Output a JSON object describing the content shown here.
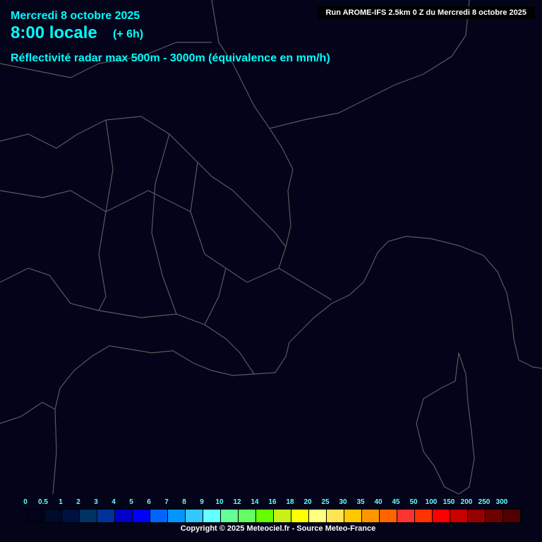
{
  "header": {
    "date": "Mercredi 8 octobre 2025",
    "time": "8:00 locale",
    "lead": "(+ 6h)",
    "parameter": "Réflectivité radar max 500m - 3000m (équivalence en mm/h)",
    "run": "Run AROME-IFS 2.5km 0 Z du Mercredi 8 octobre 2025"
  },
  "legend": {
    "labels": [
      "0",
      "0.5",
      "1",
      "2",
      "3",
      "4",
      "5",
      "6",
      "7",
      "8",
      "9",
      "10",
      "12",
      "14",
      "16",
      "18",
      "20",
      "25",
      "30",
      "35",
      "40",
      "45",
      "50",
      "100",
      "150",
      "200",
      "250",
      "300"
    ],
    "colors": [
      "#02021a",
      "#000a2a",
      "#001040",
      "#003264",
      "#00329c",
      "#0000c8",
      "#0000ff",
      "#0064ff",
      "#0096ff",
      "#32c8ff",
      "#64ffff",
      "#64ff96",
      "#64ff64",
      "#64ff00",
      "#c8f014",
      "#ffff00",
      "#ffff80",
      "#ffe650",
      "#ffc800",
      "#ff9600",
      "#ff6400",
      "#ff3232",
      "#ff3200",
      "#ff0000",
      "#c80000",
      "#960000",
      "#6e0000",
      "#500000"
    ]
  },
  "footer": {
    "copyright": "Copyright © 2025 Meteociel.fr - Source Meteo-France"
  },
  "colors": {
    "background": "#03031a",
    "borders": "#5a5a5a",
    "title": "#00ffff"
  }
}
